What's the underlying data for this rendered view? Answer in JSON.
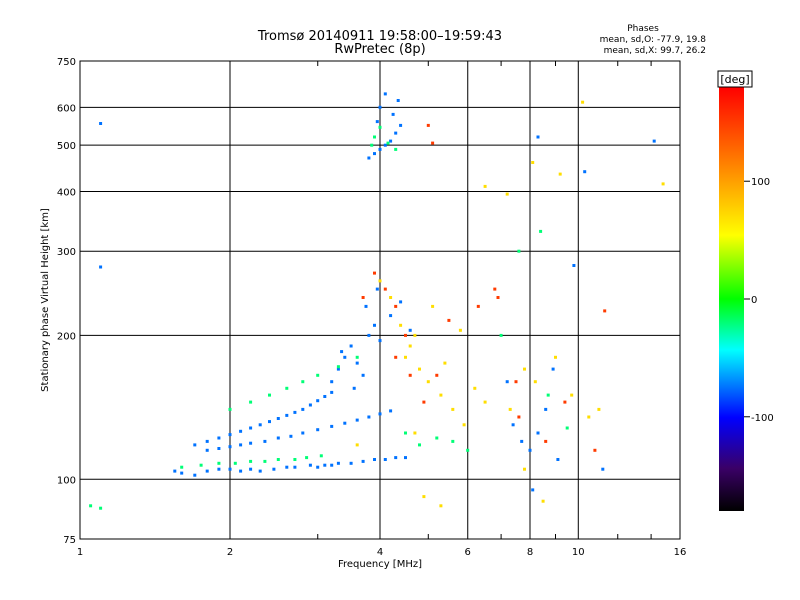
{
  "chart_data": {
    "type": "scatter",
    "title": "Tromsø 20140911 19:58:00–19:59:43",
    "subtitle": "RwPretec (8p)",
    "xlabel": "Frequency [MHz]",
    "ylabel": "Stationary phase Virtual Height [km]",
    "x_scale": "log",
    "y_scale": "log",
    "xlim": [
      1,
      16
    ],
    "ylim": [
      75,
      750
    ],
    "x_ticks": [
      1,
      2,
      4,
      6,
      8,
      10,
      16
    ],
    "y_ticks": [
      75,
      100,
      200,
      300,
      400,
      500,
      600,
      750
    ],
    "x_tick_labels": [
      "1",
      "2",
      "4",
      "6",
      "8",
      "10",
      "16"
    ],
    "y_tick_labels": [
      "75",
      "100",
      "200",
      "300",
      "400",
      "500",
      "600",
      "750"
    ],
    "grid": true,
    "stats": {
      "heading": "Phases",
      "line_o": "mean, sd,O:  -77.9, 19.8",
      "line_x": "mean, sd,X:  99.7, 26.2"
    },
    "colorbar": {
      "label": "[deg]",
      "range": [
        -180,
        180
      ],
      "ticks": [
        100,
        0,
        -100
      ],
      "tick_labels": [
        "100",
        "0",
        "-100"
      ]
    },
    "series": [
      {
        "color_deg": -75,
        "points": [
          [
            1.55,
            104
          ],
          [
            1.6,
            103
          ],
          [
            1.7,
            102
          ],
          [
            1.8,
            104
          ],
          [
            1.9,
            105
          ],
          [
            2.0,
            105
          ],
          [
            2.1,
            104
          ],
          [
            2.2,
            105
          ],
          [
            2.3,
            104
          ],
          [
            2.45,
            105
          ],
          [
            2.6,
            106
          ],
          [
            2.7,
            106
          ],
          [
            2.9,
            107
          ],
          [
            3.0,
            106
          ],
          [
            3.1,
            107
          ],
          [
            3.2,
            107
          ],
          [
            3.3,
            108
          ],
          [
            3.5,
            108
          ],
          [
            3.7,
            109
          ],
          [
            3.9,
            110
          ],
          [
            4.1,
            110
          ],
          [
            4.3,
            111
          ],
          [
            4.5,
            111
          ],
          [
            1.7,
            118
          ],
          [
            1.8,
            120
          ],
          [
            1.9,
            122
          ],
          [
            2.0,
            124
          ],
          [
            2.1,
            126
          ],
          [
            2.2,
            128
          ],
          [
            2.3,
            130
          ],
          [
            2.4,
            132
          ],
          [
            2.5,
            134
          ],
          [
            2.6,
            136
          ],
          [
            2.7,
            138
          ],
          [
            2.8,
            140
          ],
          [
            2.9,
            143
          ],
          [
            3.0,
            146
          ],
          [
            3.1,
            149
          ],
          [
            3.2,
            152
          ],
          [
            1.8,
            115
          ],
          [
            1.9,
            116
          ],
          [
            2.0,
            117
          ],
          [
            2.1,
            118
          ],
          [
            2.2,
            119
          ],
          [
            2.35,
            120
          ],
          [
            2.5,
            122
          ],
          [
            2.65,
            123
          ],
          [
            2.8,
            125
          ],
          [
            3.0,
            127
          ],
          [
            3.2,
            129
          ],
          [
            3.4,
            131
          ],
          [
            3.6,
            133
          ],
          [
            3.8,
            135
          ],
          [
            4.0,
            137
          ],
          [
            4.2,
            139
          ],
          [
            3.2,
            160
          ],
          [
            3.3,
            170
          ],
          [
            3.4,
            180
          ],
          [
            3.5,
            190
          ],
          [
            3.6,
            175
          ],
          [
            3.7,
            165
          ],
          [
            3.8,
            200
          ],
          [
            3.9,
            210
          ],
          [
            4.0,
            195
          ],
          [
            3.35,
            185
          ],
          [
            3.55,
            155
          ],
          [
            3.75,
            230
          ],
          [
            3.95,
            250
          ],
          [
            4.2,
            220
          ],
          [
            4.4,
            235
          ],
          [
            4.6,
            205
          ],
          [
            3.8,
            470
          ],
          [
            3.9,
            480
          ],
          [
            4.0,
            490
          ],
          [
            4.1,
            500
          ],
          [
            4.2,
            510
          ],
          [
            4.3,
            530
          ],
          [
            4.4,
            550
          ],
          [
            4.0,
            600
          ],
          [
            4.1,
            640
          ],
          [
            3.95,
            560
          ],
          [
            4.25,
            580
          ],
          [
            4.35,
            620
          ],
          [
            7.4,
            130
          ],
          [
            7.7,
            120
          ],
          [
            8.0,
            115
          ],
          [
            8.3,
            125
          ],
          [
            8.6,
            140
          ],
          [
            9.1,
            110
          ],
          [
            7.2,
            160
          ],
          [
            8.9,
            170
          ],
          [
            8.1,
            95
          ],
          [
            9.8,
            280
          ],
          [
            11.2,
            105
          ],
          [
            14.2,
            510
          ],
          [
            8.3,
            520
          ],
          [
            10.3,
            440
          ],
          [
            1.1,
            555
          ],
          [
            1.1,
            278
          ]
        ]
      },
      {
        "color_deg": -20,
        "points": [
          [
            1.6,
            106
          ],
          [
            1.75,
            107
          ],
          [
            1.9,
            108
          ],
          [
            2.05,
            108
          ],
          [
            2.2,
            109
          ],
          [
            2.35,
            109
          ],
          [
            2.5,
            110
          ],
          [
            2.7,
            110
          ],
          [
            2.85,
            111
          ],
          [
            3.05,
            112
          ],
          [
            2.0,
            140
          ],
          [
            2.2,
            145
          ],
          [
            2.4,
            150
          ],
          [
            2.6,
            155
          ],
          [
            2.8,
            160
          ],
          [
            3.0,
            165
          ],
          [
            3.3,
            172
          ],
          [
            3.6,
            180
          ],
          [
            3.9,
            520
          ],
          [
            4.0,
            545
          ],
          [
            4.15,
            505
          ],
          [
            4.3,
            490
          ],
          [
            3.85,
            500
          ],
          [
            4.5,
            125
          ],
          [
            4.8,
            118
          ],
          [
            5.2,
            122
          ],
          [
            5.6,
            120
          ],
          [
            6.0,
            115
          ],
          [
            7.0,
            200
          ],
          [
            7.6,
            300
          ],
          [
            8.4,
            330
          ],
          [
            8.7,
            150
          ],
          [
            9.5,
            128
          ],
          [
            1.05,
            88
          ],
          [
            1.1,
            87
          ]
        ]
      },
      {
        "color_deg": 70,
        "points": [
          [
            4.0,
            260
          ],
          [
            4.2,
            240
          ],
          [
            4.4,
            210
          ],
          [
            4.6,
            190
          ],
          [
            4.8,
            170
          ],
          [
            5.0,
            160
          ],
          [
            5.3,
            150
          ],
          [
            5.6,
            140
          ],
          [
            5.9,
            130
          ],
          [
            6.2,
            155
          ],
          [
            6.5,
            145
          ],
          [
            4.5,
            180
          ],
          [
            4.7,
            200
          ],
          [
            5.1,
            230
          ],
          [
            5.4,
            175
          ],
          [
            5.8,
            205
          ],
          [
            7.3,
            140
          ],
          [
            7.8,
            170
          ],
          [
            8.2,
            160
          ],
          [
            9.0,
            180
          ],
          [
            9.7,
            150
          ],
          [
            10.5,
            135
          ],
          [
            11.0,
            140
          ],
          [
            6.5,
            410
          ],
          [
            7.2,
            395
          ],
          [
            8.1,
            460
          ],
          [
            9.2,
            435
          ],
          [
            10.2,
            615
          ],
          [
            14.8,
            415
          ],
          [
            3.6,
            118
          ],
          [
            4.7,
            125
          ],
          [
            4.9,
            92
          ],
          [
            5.3,
            88
          ],
          [
            7.8,
            105
          ],
          [
            8.5,
            90
          ]
        ]
      },
      {
        "color_deg": 150,
        "points": [
          [
            4.1,
            250
          ],
          [
            4.3,
            230
          ],
          [
            4.5,
            200
          ],
          [
            4.3,
            180
          ],
          [
            4.6,
            165
          ],
          [
            4.9,
            145
          ],
          [
            5.2,
            165
          ],
          [
            5.5,
            215
          ],
          [
            3.7,
            240
          ],
          [
            3.9,
            270
          ],
          [
            6.3,
            230
          ],
          [
            6.8,
            250
          ],
          [
            7.6,
            135
          ],
          [
            8.6,
            120
          ],
          [
            9.4,
            145
          ],
          [
            10.8,
            115
          ],
          [
            11.3,
            225
          ],
          [
            5.0,
            550
          ],
          [
            5.1,
            505
          ],
          [
            6.9,
            240
          ],
          [
            7.5,
            160
          ]
        ]
      }
    ]
  }
}
